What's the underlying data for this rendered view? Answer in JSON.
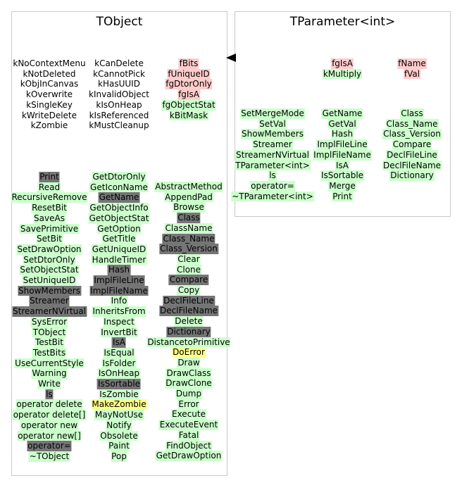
{
  "tobject": {
    "title": "TObject",
    "enum1": [
      "kNoContextMenu",
      "kNotDeleted",
      "kObjInCanvas",
      "kOverwrite",
      "kSingleKey",
      "kWriteDelete",
      "kZombie"
    ],
    "enum2": [
      "kCanDelete",
      "kCannotPick",
      "kHasUUID",
      "kInvalidObject",
      "kIsOnHeap",
      "kIsReferenced",
      "kMustCleanup"
    ],
    "members": [
      {
        "text": "fBits",
        "color": "p"
      },
      {
        "text": "fUniqueID",
        "color": "p"
      },
      {
        "text": "fgDtorOnly",
        "color": "p"
      },
      {
        "text": "fgIsA",
        "color": "p"
      },
      {
        "text": "fgObjectStat",
        "color": "g"
      },
      {
        "text": "kBitMask",
        "color": "g"
      }
    ],
    "methods1": [
      {
        "text": "Print",
        "color": "d"
      },
      {
        "text": "Read",
        "color": "g"
      },
      {
        "text": "RecursiveRemove",
        "color": "g"
      },
      {
        "text": "ResetBit",
        "color": "g"
      },
      {
        "text": "SaveAs",
        "color": "g"
      },
      {
        "text": "SavePrimitive",
        "color": "g"
      },
      {
        "text": "SetBit",
        "color": "g"
      },
      {
        "text": "SetDrawOption",
        "color": "g"
      },
      {
        "text": "SetDtorOnly",
        "color": "g"
      },
      {
        "text": "SetObjectStat",
        "color": "g"
      },
      {
        "text": "SetUniqueID",
        "color": "g"
      },
      {
        "text": "ShowMembers",
        "color": "d"
      },
      {
        "text": "Streamer",
        "color": "d"
      },
      {
        "text": "StreamerNVirtual",
        "color": "d"
      },
      {
        "text": "SysError",
        "color": "g"
      },
      {
        "text": "TObject",
        "color": "g"
      },
      {
        "text": "TestBit",
        "color": "g"
      },
      {
        "text": "TestBits",
        "color": "g"
      },
      {
        "text": "UseCurrentStyle",
        "color": "g"
      },
      {
        "text": "Warning",
        "color": "g"
      },
      {
        "text": "Write",
        "color": "g"
      },
      {
        "text": "ls",
        "color": "d"
      },
      {
        "text": "operator delete",
        "color": "g"
      },
      {
        "text": "operator delete[]",
        "color": "g"
      },
      {
        "text": "operator new",
        "color": "g"
      },
      {
        "text": "operator new[]",
        "color": "g"
      },
      {
        "text": "operator=",
        "color": "d"
      },
      {
        "text": "~TObject",
        "color": "g"
      }
    ],
    "methods2": [
      {
        "text": "GetDtorOnly",
        "color": "g"
      },
      {
        "text": "GetIconName",
        "color": "g"
      },
      {
        "text": "GetName",
        "color": "d"
      },
      {
        "text": "GetObjectInfo",
        "color": "g"
      },
      {
        "text": "GetObjectStat",
        "color": "g"
      },
      {
        "text": "GetOption",
        "color": "g"
      },
      {
        "text": "GetTitle",
        "color": "g"
      },
      {
        "text": "GetUniqueID",
        "color": "g"
      },
      {
        "text": "HandleTimer",
        "color": "g"
      },
      {
        "text": "Hash",
        "color": "d"
      },
      {
        "text": "ImplFileLine",
        "color": "d"
      },
      {
        "text": "ImplFileName",
        "color": "d"
      },
      {
        "text": "Info",
        "color": "g"
      },
      {
        "text": "InheritsFrom",
        "color": "g"
      },
      {
        "text": "Inspect",
        "color": "g"
      },
      {
        "text": "InvertBit",
        "color": "g"
      },
      {
        "text": "IsA",
        "color": "d"
      },
      {
        "text": "IsEqual",
        "color": "g"
      },
      {
        "text": "IsFolder",
        "color": "g"
      },
      {
        "text": "IsOnHeap",
        "color": "g"
      },
      {
        "text": "IsSortable",
        "color": "d"
      },
      {
        "text": "IsZombie",
        "color": "g"
      },
      {
        "text": "MakeZombie",
        "color": "y"
      },
      {
        "text": "MayNotUse",
        "color": "g"
      },
      {
        "text": "Notify",
        "color": "g"
      },
      {
        "text": "Obsolete",
        "color": "g"
      },
      {
        "text": "Paint",
        "color": "g"
      },
      {
        "text": "Pop",
        "color": "g"
      }
    ],
    "methods3": [
      {
        "text": "AbstractMethod",
        "color": "g"
      },
      {
        "text": "AppendPad",
        "color": "g"
      },
      {
        "text": "Browse",
        "color": "g"
      },
      {
        "text": "Class",
        "color": "d"
      },
      {
        "text": "ClassName",
        "color": "g"
      },
      {
        "text": "Class_Name",
        "color": "d"
      },
      {
        "text": "Class_Version",
        "color": "d"
      },
      {
        "text": "Clear",
        "color": "g"
      },
      {
        "text": "Clone",
        "color": "g"
      },
      {
        "text": "Compare",
        "color": "d"
      },
      {
        "text": "Copy",
        "color": "g"
      },
      {
        "text": "DeclFileLine",
        "color": "d"
      },
      {
        "text": "DeclFileName",
        "color": "d"
      },
      {
        "text": "Delete",
        "color": "g"
      },
      {
        "text": "Dictionary",
        "color": "d"
      },
      {
        "text": "DistancetoPrimitive",
        "color": "g"
      },
      {
        "text": "DoError",
        "color": "y"
      },
      {
        "text": "Draw",
        "color": "g"
      },
      {
        "text": "DrawClass",
        "color": "g"
      },
      {
        "text": "DrawClone",
        "color": "g"
      },
      {
        "text": "Dump",
        "color": "g"
      },
      {
        "text": "Error",
        "color": "g"
      },
      {
        "text": "Execute",
        "color": "g"
      },
      {
        "text": "ExecuteEvent",
        "color": "g"
      },
      {
        "text": "Fatal",
        "color": "g"
      },
      {
        "text": "FindObject",
        "color": "g"
      },
      {
        "text": "GetDrawOption",
        "color": "g"
      }
    ]
  },
  "tparameter": {
    "title": "TParameter<int>",
    "members1": [
      {
        "text": "fgIsA",
        "color": "p"
      },
      {
        "text": "kMultiply",
        "color": "g"
      }
    ],
    "members2": [
      {
        "text": "fName",
        "color": "p"
      },
      {
        "text": "fVal",
        "color": "p"
      }
    ],
    "methods1": [
      {
        "text": "SetMergeMode",
        "color": "g"
      },
      {
        "text": "SetVal",
        "color": "g"
      },
      {
        "text": "ShowMembers",
        "color": "g"
      },
      {
        "text": "Streamer",
        "color": "g"
      },
      {
        "text": "StreamerNVirtual",
        "color": "g"
      },
      {
        "text": "TParameter<int>",
        "color": "g"
      },
      {
        "text": "ls",
        "color": "g"
      },
      {
        "text": "operator=",
        "color": "g"
      },
      {
        "text": "~TParameter<int>",
        "color": "g"
      }
    ],
    "methods2": [
      {
        "text": "GetName",
        "color": "g"
      },
      {
        "text": "GetVal",
        "color": "g"
      },
      {
        "text": "Hash",
        "color": "g"
      },
      {
        "text": "ImplFileLine",
        "color": "g"
      },
      {
        "text": "ImplFileName",
        "color": "g"
      },
      {
        "text": "IsA",
        "color": "g"
      },
      {
        "text": "IsSortable",
        "color": "g"
      },
      {
        "text": "Merge",
        "color": "g"
      },
      {
        "text": "Print",
        "color": "g"
      }
    ],
    "methods3": [
      {
        "text": "Class",
        "color": "g"
      },
      {
        "text": "Class_Name",
        "color": "g"
      },
      {
        "text": "Class_Version",
        "color": "g"
      },
      {
        "text": "Compare",
        "color": "g"
      },
      {
        "text": "DeclFileLine",
        "color": "g"
      },
      {
        "text": "DeclFileName",
        "color": "g"
      },
      {
        "text": "Dictionary",
        "color": "g"
      }
    ]
  },
  "colors": {
    "green": "#ccffcc",
    "pink": "#ffcccc",
    "gray": "#757575",
    "yellow": "#ffff88",
    "border": "#c8c8c8"
  }
}
